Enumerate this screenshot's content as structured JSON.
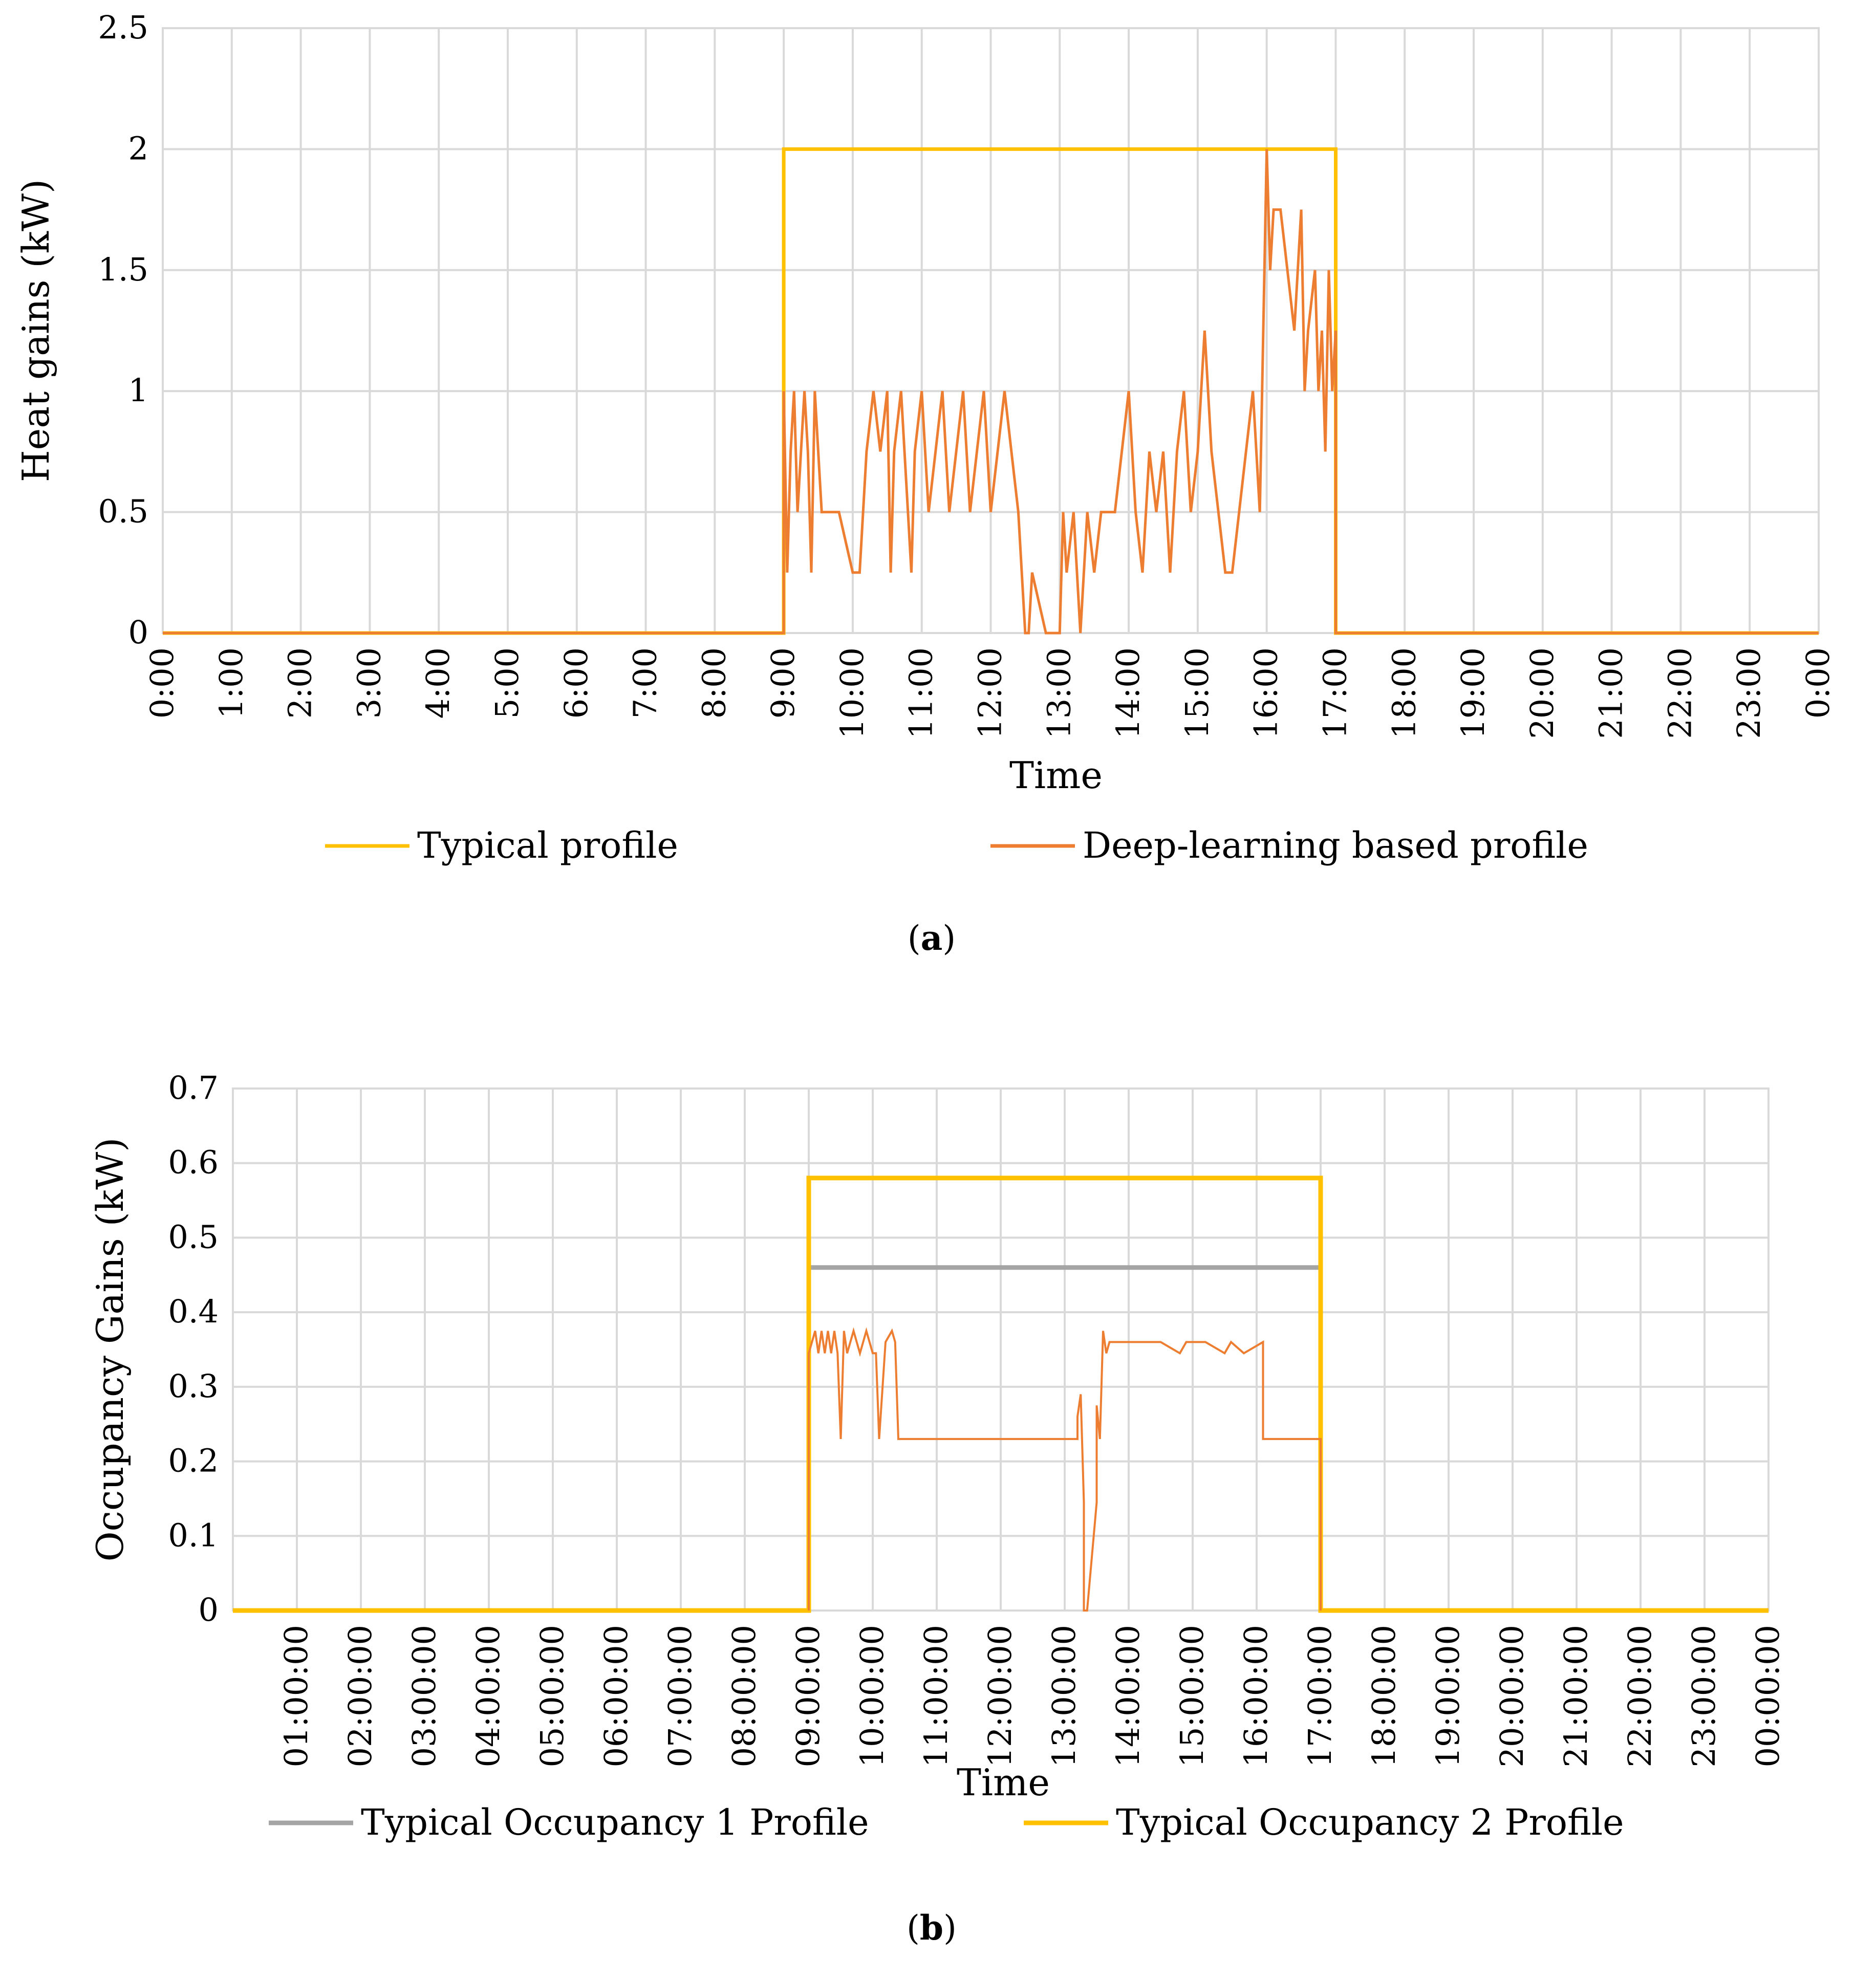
{
  "chart_data": [
    {
      "id": "a",
      "type": "line",
      "caption_letter": "a",
      "xlabel": "Time",
      "ylabel": "Heat gains (kW)",
      "ylim": [
        0,
        2.5
      ],
      "yticks": [
        "0",
        "0.5",
        "1",
        "1.5",
        "2",
        "2.5"
      ],
      "ytick_values": [
        0,
        0.5,
        1,
        1.5,
        2,
        2.5
      ],
      "xlim": [
        0,
        24
      ],
      "xticks": [
        "0:00",
        "1:00",
        "2:00",
        "3:00",
        "4:00",
        "5:00",
        "6:00",
        "7:00",
        "8:00",
        "9:00",
        "10:00",
        "11:00",
        "12:00",
        "13:00",
        "14:00",
        "15:00",
        "16:00",
        "17:00",
        "18:00",
        "19:00",
        "20:00",
        "21:00",
        "22:00",
        "23:00",
        "0:00"
      ],
      "xtick_values": [
        0,
        1,
        2,
        3,
        4,
        5,
        6,
        7,
        8,
        9,
        10,
        11,
        12,
        13,
        14,
        15,
        16,
        17,
        18,
        19,
        20,
        21,
        22,
        23,
        24
      ],
      "grid": true,
      "legend_position": "bottom",
      "series": [
        {
          "name": "Typical profile",
          "color": "#FFC000",
          "x": [
            0,
            9,
            9,
            17,
            17,
            24
          ],
          "y": [
            0,
            0,
            2,
            2,
            0,
            0
          ]
        },
        {
          "name": "Deep-learning based profile",
          "color": "#ED7D31",
          "x": [
            0,
            9,
            9,
            9.05,
            9.1,
            9.15,
            9.2,
            9.25,
            9.3,
            9.35,
            9.4,
            9.45,
            9.5,
            9.55,
            9.6,
            9.7,
            9.8,
            10.0,
            10.1,
            10.2,
            10.3,
            10.4,
            10.5,
            10.55,
            10.6,
            10.7,
            10.8,
            10.85,
            10.9,
            11.0,
            11.1,
            11.2,
            11.3,
            11.4,
            11.5,
            11.6,
            11.7,
            11.8,
            11.9,
            12.0,
            12.1,
            12.2,
            12.3,
            12.4,
            12.5,
            12.55,
            12.6,
            12.8,
            13.0,
            13.05,
            13.1,
            13.2,
            13.3,
            13.4,
            13.5,
            13.6,
            13.7,
            13.8,
            13.9,
            14.0,
            14.1,
            14.2,
            14.3,
            14.4,
            14.5,
            14.6,
            14.7,
            14.8,
            14.9,
            15.0,
            15.05,
            15.1,
            15.2,
            15.3,
            15.4,
            15.5,
            15.6,
            15.7,
            15.8,
            15.9,
            16.0,
            16.05,
            16.1,
            16.2,
            16.3,
            16.4,
            16.5,
            16.55,
            16.6,
            16.7,
            16.75,
            16.8,
            16.85,
            16.9,
            16.95,
            17.0,
            17.0,
            24
          ],
          "y": [
            0,
            0,
            1.0,
            0.25,
            0.75,
            1.0,
            0.5,
            0.75,
            1.0,
            0.75,
            0.25,
            1.0,
            0.75,
            0.5,
            0.5,
            0.5,
            0.5,
            0.25,
            0.25,
            0.75,
            1.0,
            0.75,
            1.0,
            0.25,
            0.75,
            1.0,
            0.5,
            0.25,
            0.75,
            1.0,
            0.5,
            0.75,
            1.0,
            0.5,
            0.75,
            1.0,
            0.5,
            0.75,
            1.0,
            0.5,
            0.75,
            1.0,
            0.75,
            0.5,
            0.0,
            0.0,
            0.25,
            0.0,
            0.0,
            0.5,
            0.25,
            0.5,
            0.0,
            0.5,
            0.25,
            0.5,
            0.5,
            0.5,
            0.75,
            1.0,
            0.5,
            0.25,
            0.75,
            0.5,
            0.75,
            0.25,
            0.75,
            1.0,
            0.5,
            0.75,
            1.0,
            1.25,
            0.75,
            0.5,
            0.25,
            0.25,
            0.5,
            0.75,
            1.0,
            0.5,
            2.0,
            1.5,
            1.75,
            1.75,
            1.5,
            1.25,
            1.75,
            1.0,
            1.25,
            1.5,
            1.0,
            1.25,
            0.75,
            1.5,
            1.0,
            1.25,
            0,
            0
          ]
        }
      ]
    },
    {
      "id": "b",
      "type": "line",
      "caption_letter": "b",
      "xlabel": "Time",
      "ylabel": "Occupancy  Gains (kW)",
      "ylim": [
        0,
        0.7
      ],
      "yticks": [
        "0",
        "0.1",
        "0.2",
        "0.3",
        "0.4",
        "0.5",
        "0.6",
        "0.7"
      ],
      "ytick_values": [
        0,
        0.1,
        0.2,
        0.3,
        0.4,
        0.5,
        0.6,
        0.7
      ],
      "xlim": [
        0,
        24
      ],
      "xticks": [
        "01:00:00",
        "02:00:00",
        "03:00:00",
        "04:00:00",
        "05:00:00",
        "06:00:00",
        "07:00:00",
        "08:00:00",
        "09:00:00",
        "10:00:00",
        "11:00:00",
        "12:00:00",
        "13:00:00",
        "14:00:00",
        "15:00:00",
        "16:00:00",
        "17:00:00",
        "18:00:00",
        "19:00:00",
        "20:00:00",
        "21:00:00",
        "22:00:00",
        "23:00:00",
        "00:00:00"
      ],
      "xtick_values": [
        1,
        2,
        3,
        4,
        5,
        6,
        7,
        8,
        9,
        10,
        11,
        12,
        13,
        14,
        15,
        16,
        17,
        18,
        19,
        20,
        21,
        22,
        23,
        24
      ],
      "grid": true,
      "legend_position": "bottom",
      "series": [
        {
          "name": "Typical Occupancy 1 Profile",
          "color": "#A5A5A5",
          "x": [
            9,
            17
          ],
          "y": [
            0.46,
            0.46
          ]
        },
        {
          "name": "Typical Occupancy 2 Profile",
          "color": "#FFC000",
          "x": [
            0,
            9,
            9,
            17,
            17,
            24
          ],
          "y": [
            0,
            0,
            0.58,
            0.58,
            0,
            0
          ]
        },
        {
          "name": "",
          "color": "#ED7D31",
          "x": [
            9,
            9,
            9.1,
            9.15,
            9.2,
            9.25,
            9.3,
            9.35,
            9.4,
            9.45,
            9.5,
            9.55,
            9.6,
            9.7,
            9.8,
            9.9,
            10.0,
            10.05,
            10.1,
            10.2,
            10.3,
            10.35,
            10.4,
            13.2,
            13.2,
            13.25,
            13.3,
            13.3,
            13.35,
            13.35,
            13.5,
            13.5,
            13.55,
            13.6,
            13.65,
            13.7,
            14.5,
            14.8,
            14.9,
            15.2,
            15.5,
            15.6,
            15.8,
            16.1,
            16.1,
            17.0,
            17.0
          ],
          "y": [
            0,
            0.345,
            0.375,
            0.345,
            0.375,
            0.345,
            0.375,
            0.345,
            0.375,
            0.345,
            0.23,
            0.375,
            0.345,
            0.375,
            0.345,
            0.375,
            0.345,
            0.345,
            0.23,
            0.36,
            0.375,
            0.36,
            0.23,
            0.23,
            0.26,
            0.29,
            0.145,
            0.0,
            0.0,
            0.0,
            0.145,
            0.275,
            0.23,
            0.375,
            0.345,
            0.36,
            0.36,
            0.345,
            0.36,
            0.36,
            0.345,
            0.36,
            0.345,
            0.36,
            0.23,
            0.23,
            0
          ]
        }
      ]
    }
  ]
}
